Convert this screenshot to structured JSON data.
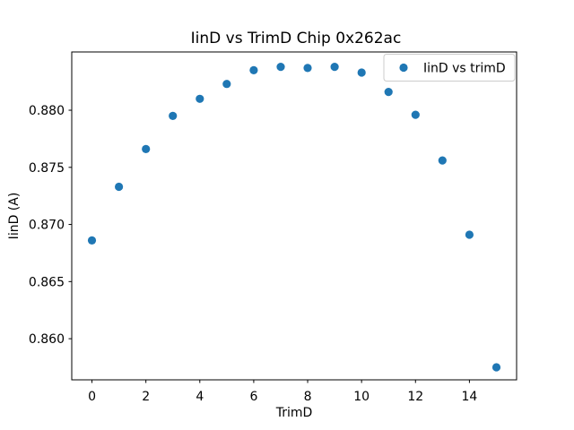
{
  "chart_data": {
    "type": "scatter",
    "title": "IinD vs TrimD Chip 0x262ac",
    "xlabel": "TrimD",
    "ylabel": "IinD (A)",
    "legend": {
      "position": "upper right",
      "entries": [
        "IinD vs trimD"
      ]
    },
    "x": [
      0,
      1,
      2,
      3,
      4,
      5,
      6,
      7,
      8,
      9,
      10,
      11,
      12,
      13,
      14,
      15
    ],
    "y": [
      0.8686,
      0.8733,
      0.8766,
      0.8795,
      0.881,
      0.8823,
      0.8835,
      0.8838,
      0.8837,
      0.8838,
      0.8833,
      0.8816,
      0.8796,
      0.8756,
      0.8691,
      0.8575
    ],
    "xlim": [
      -0.75,
      15.75
    ],
    "ylim": [
      0.8564,
      0.8851
    ],
    "xticks": {
      "values": [
        0,
        2,
        4,
        6,
        8,
        10,
        12,
        14
      ],
      "labels": [
        "0",
        "2",
        "4",
        "6",
        "8",
        "10",
        "12",
        "14"
      ]
    },
    "yticks": {
      "values": [
        0.86,
        0.865,
        0.87,
        0.875,
        0.88
      ],
      "labels": [
        "0.860",
        "0.865",
        "0.870",
        "0.875",
        "0.880"
      ]
    },
    "grid": false,
    "colors": {
      "marker": "#1f77b4",
      "spine": "#000000",
      "legend_border": "#cccccc",
      "background": "#ffffff"
    }
  }
}
